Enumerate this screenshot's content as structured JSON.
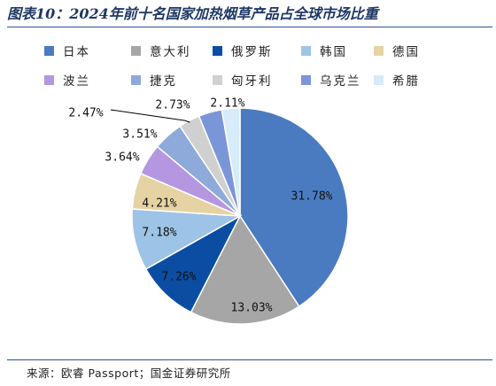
{
  "title": "图表10：2024年前十名国家加热烟草产品占全球市场比重",
  "source": "来源：欧睿 Passport；国金证券研究所",
  "chart_data": {
    "type": "pie",
    "title": "图表10：2024年前十名国家加热烟草产品占全球市场比重",
    "unit": "%",
    "legend_position": "top",
    "categories": [
      "日本",
      "意大利",
      "俄罗斯",
      "韩国",
      "德国",
      "波兰",
      "捷克",
      "匈牙利",
      "乌克兰",
      "希腊"
    ],
    "values": [
      31.78,
      13.03,
      7.26,
      7.18,
      4.21,
      3.64,
      3.51,
      2.47,
      2.73,
      2.11
    ],
    "labels": [
      "31.78%",
      "13.03%",
      "7.26%",
      "7.18%",
      "4.21%",
      "3.64%",
      "3.51%",
      "2.47%",
      "2.73%",
      "2.11%"
    ],
    "colors": [
      "#4a7bc0",
      "#a6a6a6",
      "#0b4da2",
      "#9dc3e6",
      "#e6d3a3",
      "#b497e0",
      "#8eaadb",
      "#d0d0d0",
      "#7b96d8",
      "#d6ecfa"
    ]
  }
}
